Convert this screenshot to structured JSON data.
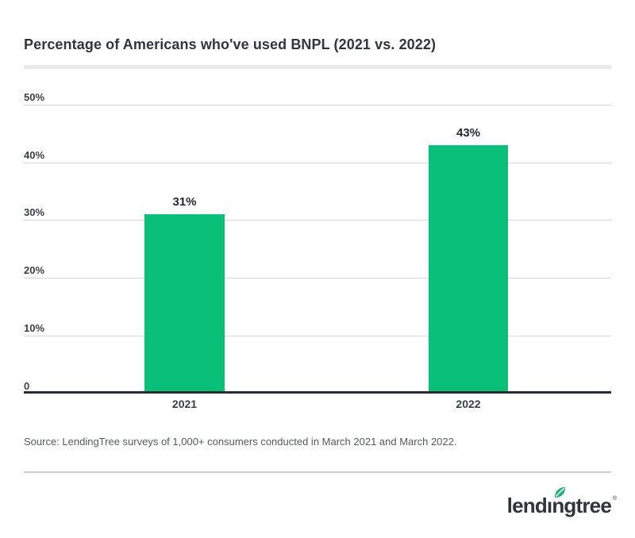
{
  "page": {
    "source": "Source: LendingTree surveys of 1,000+ consumers conducted in March 2021 and March 2022.",
    "brand": {
      "wordmark": "lendıngtree",
      "trademark": "®",
      "leaf_color": "#1eb473",
      "text_color": "#2f353c"
    }
  },
  "chart_data": {
    "type": "bar",
    "title": "Percentage of Americans who've used BNPL (2021 vs. 2022)",
    "categories": [
      "2021",
      "2022"
    ],
    "values": [
      31,
      43
    ],
    "value_labels": [
      "31%",
      "43%"
    ],
    "yticks": [
      "50%",
      "40%",
      "30%",
      "20%",
      "10%",
      "0"
    ],
    "ylim": [
      0,
      50
    ],
    "bar_color": "#0abf78",
    "grid": true,
    "legend": false,
    "xlabel": "",
    "ylabel": ""
  }
}
